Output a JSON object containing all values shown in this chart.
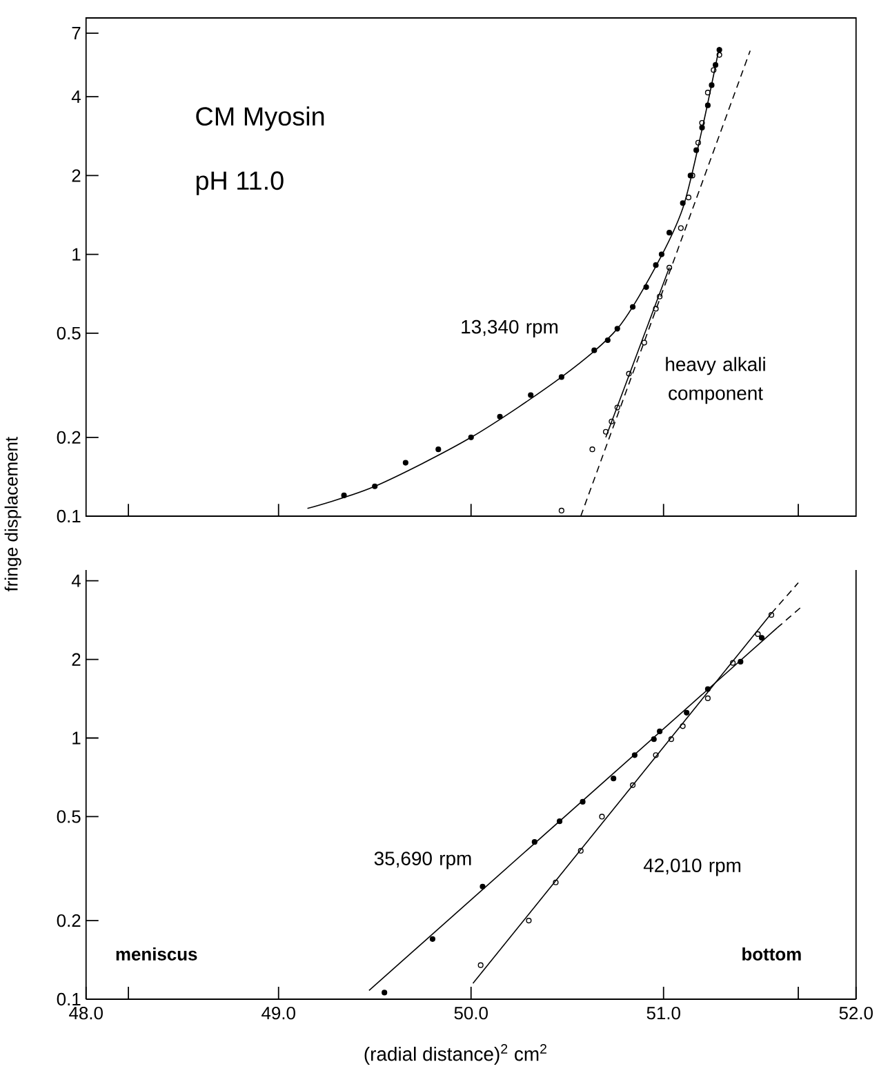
{
  "chart_data": [
    {
      "type": "scatter",
      "title": "CM Myosin",
      "subtitle": "pH 11.0",
      "log": "y",
      "xlim": [
        48,
        52
      ],
      "ylim": [
        0.1,
        8
      ],
      "tick_labels": "y",
      "xticks": [
        49,
        50,
        51,
        {
          "value": 48.22,
          "label": null
        },
        {
          "value": 51.7,
          "label": null
        }
      ],
      "yticks": [
        0.1,
        0.2,
        0.5,
        1,
        2,
        4,
        7
      ],
      "series": [
        {
          "name": "13,340 rpm",
          "marker": "circle",
          "color": "#000000",
          "x": [
            49.34,
            49.5,
            49.66,
            49.83,
            50.0,
            50.15,
            50.31,
            50.47,
            50.64,
            50.71,
            50.76,
            50.84,
            50.91,
            50.96,
            50.99,
            51.03,
            51.1,
            51.14,
            51.17,
            51.2,
            51.23,
            51.25,
            51.27,
            51.29
          ],
          "values": [
            0.12,
            0.13,
            0.16,
            0.18,
            0.2,
            0.24,
            0.29,
            0.34,
            0.43,
            0.47,
            0.52,
            0.63,
            0.75,
            0.91,
            1.0,
            1.21,
            1.57,
            2.0,
            2.5,
            3.05,
            3.71,
            4.43,
            5.29,
            6.04
          ]
        },
        {
          "name": "heavy alkali component",
          "marker": "circle open",
          "color": "#000000",
          "x": [
            50.47,
            50.63,
            50.7,
            50.73,
            50.76,
            50.82,
            50.9,
            50.96,
            50.98,
            51.03,
            51.09,
            51.13,
            51.15,
            51.18,
            51.2,
            51.23,
            51.26,
            51.29
          ],
          "values": [
            0.105,
            0.18,
            0.21,
            0.23,
            0.26,
            0.35,
            0.46,
            0.62,
            0.69,
            0.89,
            1.26,
            1.65,
            2.0,
            2.67,
            3.18,
            4.15,
            5.06,
            5.78
          ]
        },
        {
          "type": "line",
          "marker": "none",
          "line_style": "solid",
          "color": "#000000",
          "x": [
            49.15,
            49.5,
            50.0,
            50.47,
            50.76,
            50.96,
            51.1,
            51.2,
            51.29
          ],
          "values": [
            0.107,
            0.13,
            0.2,
            0.34,
            0.52,
            0.9,
            1.5,
            3.0,
            6.2
          ]
        },
        {
          "type": "line",
          "marker": "none",
          "line_style": "dashed",
          "color": "#000000",
          "x": [
            50.57,
            51.45
          ],
          "values": [
            0.1,
            6.0
          ]
        },
        {
          "type": "line",
          "marker": "none",
          "line_style": "solid",
          "color": "#000000",
          "x": [
            50.7,
            51.03
          ],
          "values": [
            0.2,
            0.89
          ]
        }
      ]
    },
    {
      "type": "scatter",
      "ylabel": "fringe displacement",
      "xlabel": "(radial distance)$^{2}$ cm$^{2}$",
      "log": "y",
      "xlim": [
        48,
        52
      ],
      "ylim": [
        0.1,
        4.4
      ],
      "xticks": [
        {
          "value": 48,
          "label": "48.0"
        },
        {
          "value": 49,
          "label": "49.0"
        },
        {
          "value": 50,
          "label": "50.0"
        },
        {
          "value": 51,
          "label": "51.0"
        },
        {
          "value": 52,
          "label": "52.0"
        },
        {
          "value": 48.22,
          "label": null
        },
        {
          "value": 51.7,
          "label": null
        }
      ],
      "yticks": [
        0.1,
        0.2,
        0.5,
        1,
        2,
        4
      ],
      "annotations": [
        "meniscus",
        "bottom"
      ],
      "series": [
        {
          "name": "35,690 rpm",
          "marker": "circle",
          "color": "#000000",
          "x": [
            49.55,
            49.8,
            50.06,
            50.33,
            50.46,
            50.58,
            50.74,
            50.85,
            50.95,
            50.98,
            51.12,
            51.23,
            51.4,
            51.51
          ],
          "values": [
            0.106,
            0.17,
            0.27,
            0.4,
            0.48,
            0.57,
            0.7,
            0.86,
            0.99,
            1.06,
            1.25,
            1.54,
            1.96,
            2.42
          ]
        },
        {
          "name": "42,010 rpm",
          "marker": "circle open",
          "color": "#000000",
          "x": [
            50.05,
            50.3,
            50.44,
            50.57,
            50.68,
            50.84,
            50.96,
            51.04,
            51.1,
            51.23,
            51.36,
            51.49,
            51.56
          ],
          "values": [
            0.135,
            0.2,
            0.28,
            0.37,
            0.5,
            0.66,
            0.86,
            0.99,
            1.11,
            1.42,
            1.94,
            2.5,
            2.96
          ]
        },
        {
          "type": "line",
          "marker": "none",
          "line_style": "solid",
          "color": "#000000",
          "x": [
            49.47,
            51.59
          ],
          "values": [
            0.108,
            2.64
          ]
        },
        {
          "type": "line",
          "marker": "none",
          "line_style": "dashed",
          "color": "#000000",
          "x": [
            51.59,
            51.71
          ],
          "values": [
            2.64,
            3.15
          ]
        },
        {
          "type": "line",
          "marker": "none",
          "line_style": "solid",
          "color": "#000000",
          "x": [
            50.01,
            51.56
          ],
          "values": [
            0.115,
            3.0
          ]
        },
        {
          "type": "line",
          "marker": "none",
          "line_style": "dashed",
          "color": "#000000",
          "x": [
            51.56,
            51.7
          ],
          "values": [
            3.0,
            3.93
          ]
        }
      ]
    }
  ]
}
